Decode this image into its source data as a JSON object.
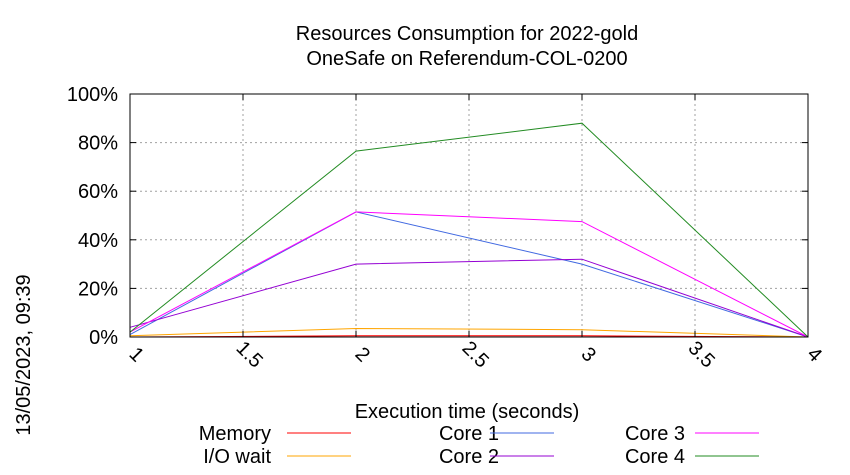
{
  "side_stamp": "13/05/2023, 09:39",
  "chart_data": {
    "type": "line",
    "title": [
      "Resources Consumption for 2022-gold",
      "OneSafe on Referendum-COL-0200"
    ],
    "xlabel": "Execution time (seconds)",
    "ylabel": "",
    "xlim": [
      1,
      4
    ],
    "ylim": [
      0,
      100
    ],
    "x_ticks": [
      1,
      1.5,
      2,
      2.5,
      3,
      3.5,
      4
    ],
    "y_ticks": [
      0,
      20,
      40,
      60,
      80,
      100
    ],
    "y_tick_suffix": "%",
    "grid": true,
    "legend": "bottom",
    "series": [
      {
        "name": "Memory",
        "color": "#ff0000",
        "x": [
          1,
          2,
          3,
          4
        ],
        "y": [
          0,
          0.5,
          0.5,
          0
        ]
      },
      {
        "name": "I/O wait",
        "color": "#ffa500",
        "x": [
          1,
          2,
          3,
          4
        ],
        "y": [
          0.5,
          3.5,
          3,
          0
        ]
      },
      {
        "name": "Core 1",
        "color": "#4169e1",
        "x": [
          1,
          2,
          3,
          4
        ],
        "y": [
          1,
          51.5,
          30,
          0
        ]
      },
      {
        "name": "Core 2",
        "color": "#9400d3",
        "x": [
          1,
          2,
          3,
          4
        ],
        "y": [
          4,
          30,
          32,
          0
        ]
      },
      {
        "name": "Core 3",
        "color": "#ff00ff",
        "x": [
          1,
          2,
          3,
          4
        ],
        "y": [
          2,
          51.5,
          47.5,
          0
        ]
      },
      {
        "name": "Core 4",
        "color": "#228b22",
        "x": [
          1,
          2,
          3,
          4
        ],
        "y": [
          2,
          76.5,
          88,
          0
        ]
      }
    ]
  }
}
